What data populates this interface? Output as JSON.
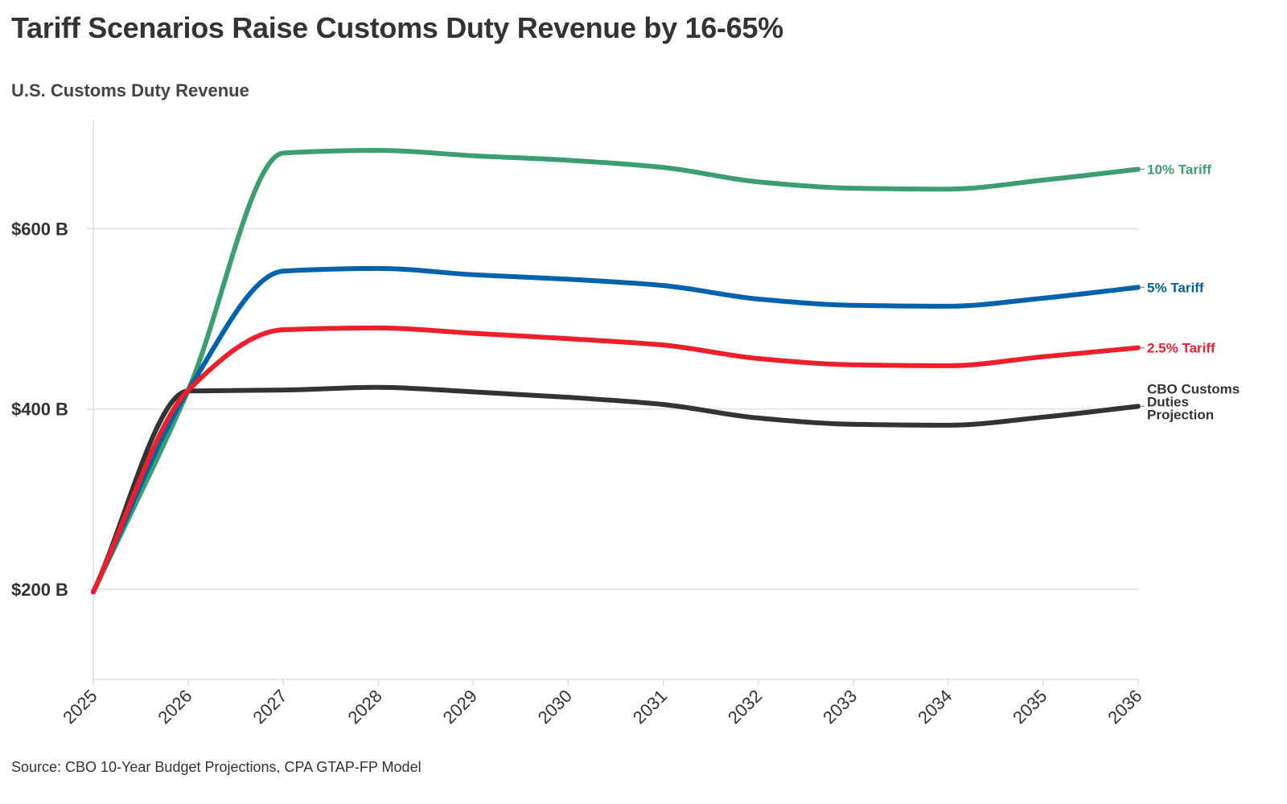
{
  "title": "Tariff Scenarios Raise Customs Duty Revenue by 16-65%",
  "subtitle": "U.S. Customs Duty Revenue",
  "source": "Source: CBO 10-Year Budget Projections, CPA GTAP-FP Model",
  "chart_data": {
    "type": "line",
    "title": "Tariff Scenarios Raise Customs Duty Revenue by 16-65%",
    "subtitle": "U.S. Customs Duty Revenue",
    "xlabel": "",
    "ylabel": "",
    "x": [
      2025,
      2026,
      2027,
      2028,
      2029,
      2030,
      2031,
      2032,
      2033,
      2034,
      2035,
      2036
    ],
    "xticks": [
      "2025",
      "2026",
      "2027",
      "2028",
      "2029",
      "2030",
      "2031",
      "2032",
      "2033",
      "2034",
      "2035",
      "2036"
    ],
    "ylim": [
      100,
      720
    ],
    "yticks": [
      {
        "value": 200,
        "label": "$200 B"
      },
      {
        "value": 400,
        "label": "$400 B"
      },
      {
        "value": 600,
        "label": "$600 B"
      }
    ],
    "grid": true,
    "legend": "direct labels at line ends (right)",
    "series": [
      {
        "name": "CBO Customs Duties Projection",
        "label_lines": [
          "CBO Customs",
          "Duties",
          "Projection"
        ],
        "color": "#333333",
        "values": [
          197,
          420,
          421,
          424,
          419,
          413,
          405,
          390,
          383,
          382,
          391,
          403
        ]
      },
      {
        "name": "10% Tariff",
        "label_lines": [
          "10% Tariff"
        ],
        "color": "#3a9e70",
        "values": [
          197,
          421,
          684,
          687,
          681,
          676,
          668,
          652,
          645,
          644,
          654,
          666
        ]
      },
      {
        "name": "5% Tariff",
        "label_lines": [
          "5% Tariff"
        ],
        "color": "#0062ab",
        "values": [
          197,
          421,
          553,
          556,
          549,
          544,
          537,
          522,
          515,
          514,
          523,
          535
        ]
      },
      {
        "name": "2.5% Tariff",
        "label_lines": [
          "2.5% Tariff"
        ],
        "color": "#ee1f2b",
        "values": [
          197,
          421,
          488,
          490,
          484,
          478,
          471,
          456,
          449,
          448,
          458,
          468
        ]
      }
    ]
  }
}
